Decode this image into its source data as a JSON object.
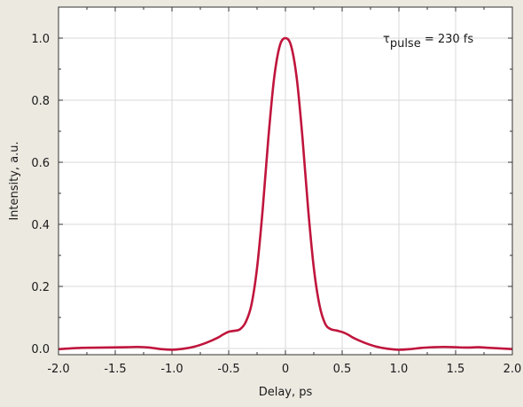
{
  "chart_data": {
    "type": "line",
    "xlabel": "Delay, ps",
    "ylabel": "Intensity, a.u.",
    "xlim": [
      -2.0,
      2.0
    ],
    "ylim": [
      -0.02,
      1.1
    ],
    "x_ticks": [
      -2.0,
      -1.5,
      -1.0,
      -0.5,
      0,
      0.5,
      1.0,
      1.5,
      2.0
    ],
    "x_tick_labels": [
      "-2.0",
      "-1.5",
      "-1.0",
      "-0.5",
      "0",
      "0.5",
      "1.0",
      "1.5",
      "2.0"
    ],
    "y_ticks": [
      0.0,
      0.2,
      0.4,
      0.6,
      0.8,
      1.0
    ],
    "y_tick_labels": [
      "0.0",
      "0.2",
      "0.4",
      "0.6",
      "0.8",
      "1.0"
    ],
    "grid": true,
    "annotation": {
      "symbol": "τ",
      "subscript": "pulse",
      "text": " = 230 fs"
    },
    "series": [
      {
        "color": "#c0153c",
        "x": [
          -2.0,
          -1.8,
          -1.6,
          -1.4,
          -1.3,
          -1.2,
          -1.1,
          -1.0,
          -0.9,
          -0.8,
          -0.7,
          -0.6,
          -0.55,
          -0.5,
          -0.45,
          -0.4,
          -0.35,
          -0.3,
          -0.25,
          -0.2,
          -0.15,
          -0.1,
          -0.05,
          0.0,
          0.05,
          0.1,
          0.15,
          0.2,
          0.25,
          0.3,
          0.35,
          0.4,
          0.45,
          0.5,
          0.55,
          0.6,
          0.7,
          0.8,
          0.9,
          1.0,
          1.1,
          1.2,
          1.3,
          1.4,
          1.5,
          1.6,
          1.7,
          1.8,
          2.0
        ],
        "y": [
          -0.002,
          0.002,
          0.003,
          0.004,
          0.005,
          0.003,
          -0.002,
          -0.004,
          -0.001,
          0.006,
          0.018,
          0.034,
          0.045,
          0.054,
          0.057,
          0.062,
          0.085,
          0.14,
          0.26,
          0.45,
          0.68,
          0.87,
          0.975,
          1.0,
          0.975,
          0.87,
          0.68,
          0.45,
          0.26,
          0.14,
          0.08,
          0.062,
          0.058,
          0.053,
          0.045,
          0.034,
          0.018,
          0.006,
          -0.001,
          -0.004,
          -0.002,
          0.002,
          0.004,
          0.005,
          0.004,
          0.003,
          0.004,
          0.002,
          -0.002
        ]
      }
    ]
  }
}
